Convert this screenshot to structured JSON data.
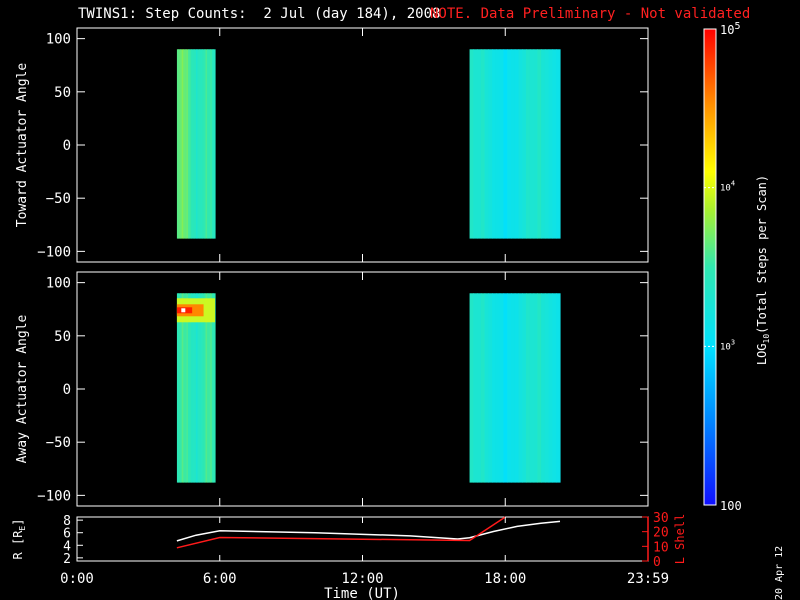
{
  "title": {
    "main": "TWINS1: Step Counts:  2 Jul (day 184), 2008",
    "note": "NOTE. Data Preliminary - Not validated",
    "note_color": "#ff2020"
  },
  "stamp": "20 Apr 12",
  "colors": {
    "background": "#000000",
    "axes": "#ffffff",
    "lshell": "#ff1a1a"
  },
  "chart_data": [
    {
      "type": "heatmap",
      "ylabel": "Toward Actuator Angle",
      "ylim": [
        -110,
        110
      ],
      "yticks": [
        100,
        50,
        0,
        -50,
        -100
      ],
      "xlim": [
        0,
        24
      ],
      "scan_blocks": [
        {
          "x": [
            4.2,
            5.8
          ],
          "y": [
            -88,
            90
          ],
          "level": 3.62,
          "hotspot": null
        },
        {
          "x": [
            16.5,
            20.3
          ],
          "y": [
            -88,
            90
          ],
          "level": 3.2,
          "hotspot": null
        }
      ]
    },
    {
      "type": "heatmap",
      "ylabel": "Away Actuator Angle",
      "ylim": [
        -110,
        110
      ],
      "yticks": [
        100,
        50,
        0,
        -50,
        -100
      ],
      "xlim": [
        0,
        24
      ],
      "scan_blocks": [
        {
          "x": [
            4.2,
            5.8
          ],
          "y": [
            -88,
            90
          ],
          "level": 3.45,
          "hotspot": {
            "x": 4.3,
            "y": 74,
            "level": 4.9
          }
        },
        {
          "x": [
            16.5,
            20.3
          ],
          "y": [
            -88,
            90
          ],
          "level": 3.2,
          "hotspot": null
        }
      ]
    },
    {
      "type": "line",
      "ylabel_left": "R [R",
      "ylabel_left_sub": "E",
      "ylabel_left_end": "]",
      "ylabel_right": "L Shell",
      "ylim_left": [
        1.5,
        8.5
      ],
      "yticks_left": [
        8,
        6,
        4,
        2
      ],
      "ylim_right": [
        0,
        30
      ],
      "yticks_right": [
        30,
        20,
        10,
        0
      ],
      "series": [
        {
          "axis": "left",
          "color": "#ffffff",
          "x": [
            4.2,
            5.0,
            6.0,
            10.0,
            14.0,
            16.0,
            16.5,
            17.5,
            18.5,
            19.5,
            20.3
          ],
          "y": [
            4.7,
            5.6,
            6.3,
            6.0,
            5.5,
            5.0,
            5.2,
            6.2,
            7.0,
            7.5,
            7.8
          ]
        },
        {
          "axis": "right",
          "color": "#ff1a1a",
          "x": [
            4.2,
            6.0,
            16.5,
            18.0
          ],
          "y": [
            9.0,
            16.0,
            14.0,
            30.0
          ]
        }
      ]
    }
  ],
  "xaxis": {
    "ticks": [
      {
        "t": 0,
        "label": "0:00"
      },
      {
        "t": 6,
        "label": "6:00"
      },
      {
        "t": 12,
        "label": "12:00"
      },
      {
        "t": 18,
        "label": "18:00"
      },
      {
        "t": 24,
        "label": "23:59"
      }
    ],
    "xlabel": "Time (UT)"
  },
  "colorbar": {
    "range": [
      2,
      5
    ],
    "ticks": [
      {
        "v": 5,
        "base": "10",
        "exp": "5",
        "small": false
      },
      {
        "v": 4,
        "base": "10",
        "exp": "4",
        "small": true
      },
      {
        "v": 3,
        "base": "10",
        "exp": "3",
        "small": true
      },
      {
        "v": 2,
        "base": "100",
        "exp": "",
        "small": false
      }
    ],
    "label_pre": "LOG",
    "label_sub": "10",
    "label_post": "(Total Steps per Scan)"
  }
}
